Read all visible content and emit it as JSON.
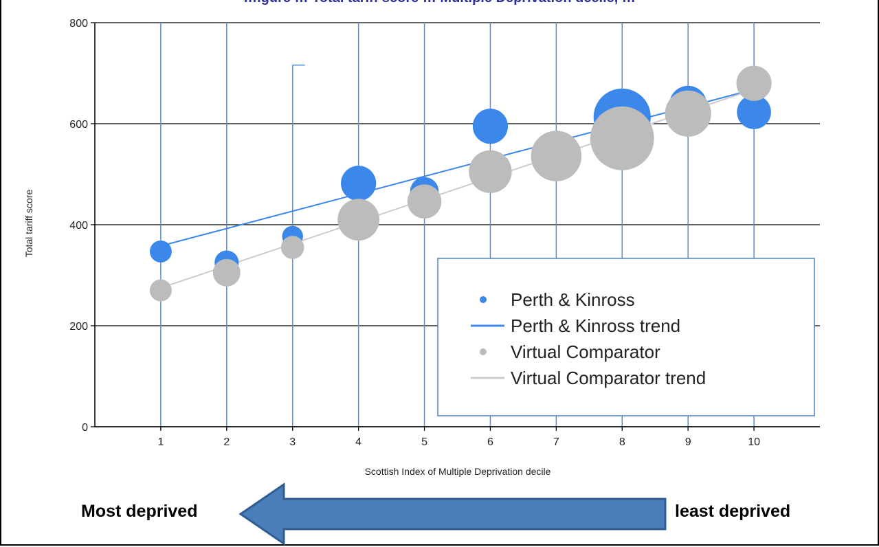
{
  "title": "…igure … Total tariff score … Multiple Deprivation decile, …",
  "directions": {
    "left": "Most deprived",
    "right": "least deprived"
  },
  "chart_data": {
    "type": "scatter",
    "title": "",
    "xlabel": "Scottish Index of Multiple Deprivation decile",
    "ylabel": "Total tariff score",
    "x": [
      1,
      2,
      3,
      4,
      5,
      6,
      7,
      8,
      9,
      10
    ],
    "xlim": [
      0,
      11
    ],
    "ylim": [
      0,
      800
    ],
    "yticks": [
      0,
      200,
      400,
      600,
      800
    ],
    "grid": "vertical lines at deciles, horizontal lines at y ticks",
    "legend_position": "bottom-right",
    "series": [
      {
        "name": "Perth & Kinross",
        "kind": "bubble",
        "color": "#3b87ea",
        "values": [
          347,
          325,
          377,
          482,
          466,
          595,
          545,
          613,
          638,
          623
        ],
        "bubble_size": [
          1.0,
          1.1,
          0.95,
          1.6,
          1.3,
          1.6,
          1.7,
          2.6,
          1.7,
          1.55
        ],
        "range_high": [
          800,
          800,
          716,
          800,
          800,
          800,
          800,
          800,
          800,
          800
        ],
        "range_low": [
          0,
          0,
          0,
          0,
          0,
          0,
          0,
          0,
          0,
          0
        ]
      },
      {
        "name": "Perth & Kinross trend",
        "kind": "line",
        "color": "#3b87ea",
        "start": [
          1,
          358
        ],
        "end": [
          10,
          668
        ]
      },
      {
        "name": "Virtual Comparator",
        "kind": "bubble",
        "color": "#bcbcbc",
        "values": [
          270,
          305,
          355,
          410,
          446,
          505,
          536,
          571,
          620,
          680
        ],
        "bubble_size": [
          1.0,
          1.25,
          1.05,
          1.9,
          1.55,
          1.95,
          2.3,
          2.9,
          2.1,
          1.6
        ]
      },
      {
        "name": "Virtual Comparator trend",
        "kind": "line",
        "color": "#cccccc",
        "start": [
          1,
          275
        ],
        "end": [
          10,
          668
        ]
      }
    ]
  }
}
